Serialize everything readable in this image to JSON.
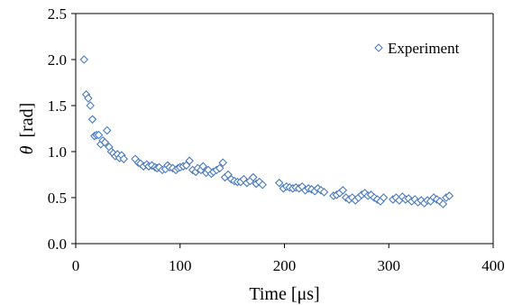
{
  "chart_data": {
    "type": "scatter",
    "title": "",
    "xlabel": "Time [μs]",
    "ylabel_symbol": "θ",
    "ylabel_unit": "[rad]",
    "xlim": [
      0,
      400
    ],
    "ylim": [
      0,
      2.5
    ],
    "xticks": [
      "0",
      "100",
      "200",
      "300",
      "400"
    ],
    "yticks": [
      "0.0",
      "0.5",
      "1.0",
      "1.5",
      "2.0",
      "2.5"
    ],
    "grid": false,
    "legend_position": "top-right",
    "marker": "diamond-open",
    "marker_color": "#4a7bbf",
    "series": [
      {
        "name": "Experiment",
        "x": [
          8,
          10,
          12,
          14,
          16,
          18,
          20,
          22,
          24,
          26,
          28,
          30,
          32,
          34,
          36,
          38,
          40,
          42,
          44,
          46,
          57,
          60,
          62,
          65,
          68,
          70,
          73,
          76,
          78,
          80,
          83,
          86,
          88,
          90,
          93,
          96,
          98,
          100,
          103,
          106,
          109,
          112,
          115,
          117,
          120,
          122,
          125,
          127,
          130,
          132,
          135,
          138,
          141,
          143,
          146,
          149,
          152,
          155,
          158,
          161,
          164,
          167,
          170,
          173,
          176,
          179,
          195,
          199,
          202,
          205,
          208,
          211,
          214,
          217,
          220,
          223,
          226,
          229,
          232,
          235,
          238,
          247,
          250,
          253,
          256,
          259,
          262,
          265,
          268,
          271,
          274,
          277,
          280,
          283,
          286,
          289,
          292,
          295,
          304,
          307,
          310,
          313,
          316,
          319,
          322,
          325,
          328,
          331,
          334,
          337,
          340,
          343,
          346,
          349,
          352,
          355,
          358
        ],
        "y": [
          2.0,
          1.62,
          1.58,
          1.5,
          1.35,
          1.17,
          1.18,
          1.18,
          1.08,
          1.12,
          1.1,
          1.23,
          1.05,
          1.0,
          0.98,
          0.95,
          0.97,
          0.93,
          0.96,
          0.92,
          0.92,
          0.88,
          0.87,
          0.84,
          0.86,
          0.84,
          0.85,
          0.83,
          0.82,
          0.83,
          0.8,
          0.81,
          0.85,
          0.83,
          0.82,
          0.8,
          0.82,
          0.83,
          0.84,
          0.85,
          0.9,
          0.8,
          0.78,
          0.82,
          0.8,
          0.84,
          0.77,
          0.8,
          0.76,
          0.78,
          0.8,
          0.82,
          0.88,
          0.72,
          0.75,
          0.7,
          0.68,
          0.67,
          0.67,
          0.7,
          0.66,
          0.68,
          0.72,
          0.65,
          0.67,
          0.64,
          0.66,
          0.6,
          0.62,
          0.61,
          0.6,
          0.61,
          0.6,
          0.62,
          0.58,
          0.6,
          0.59,
          0.57,
          0.6,
          0.58,
          0.56,
          0.52,
          0.53,
          0.55,
          0.58,
          0.5,
          0.48,
          0.5,
          0.47,
          0.5,
          0.53,
          0.55,
          0.52,
          0.53,
          0.5,
          0.48,
          0.46,
          0.5,
          0.48,
          0.5,
          0.47,
          0.51,
          0.48,
          0.49,
          0.46,
          0.48,
          0.45,
          0.47,
          0.44,
          0.47,
          0.46,
          0.5,
          0.48,
          0.46,
          0.43,
          0.5,
          0.52
        ]
      }
    ]
  }
}
